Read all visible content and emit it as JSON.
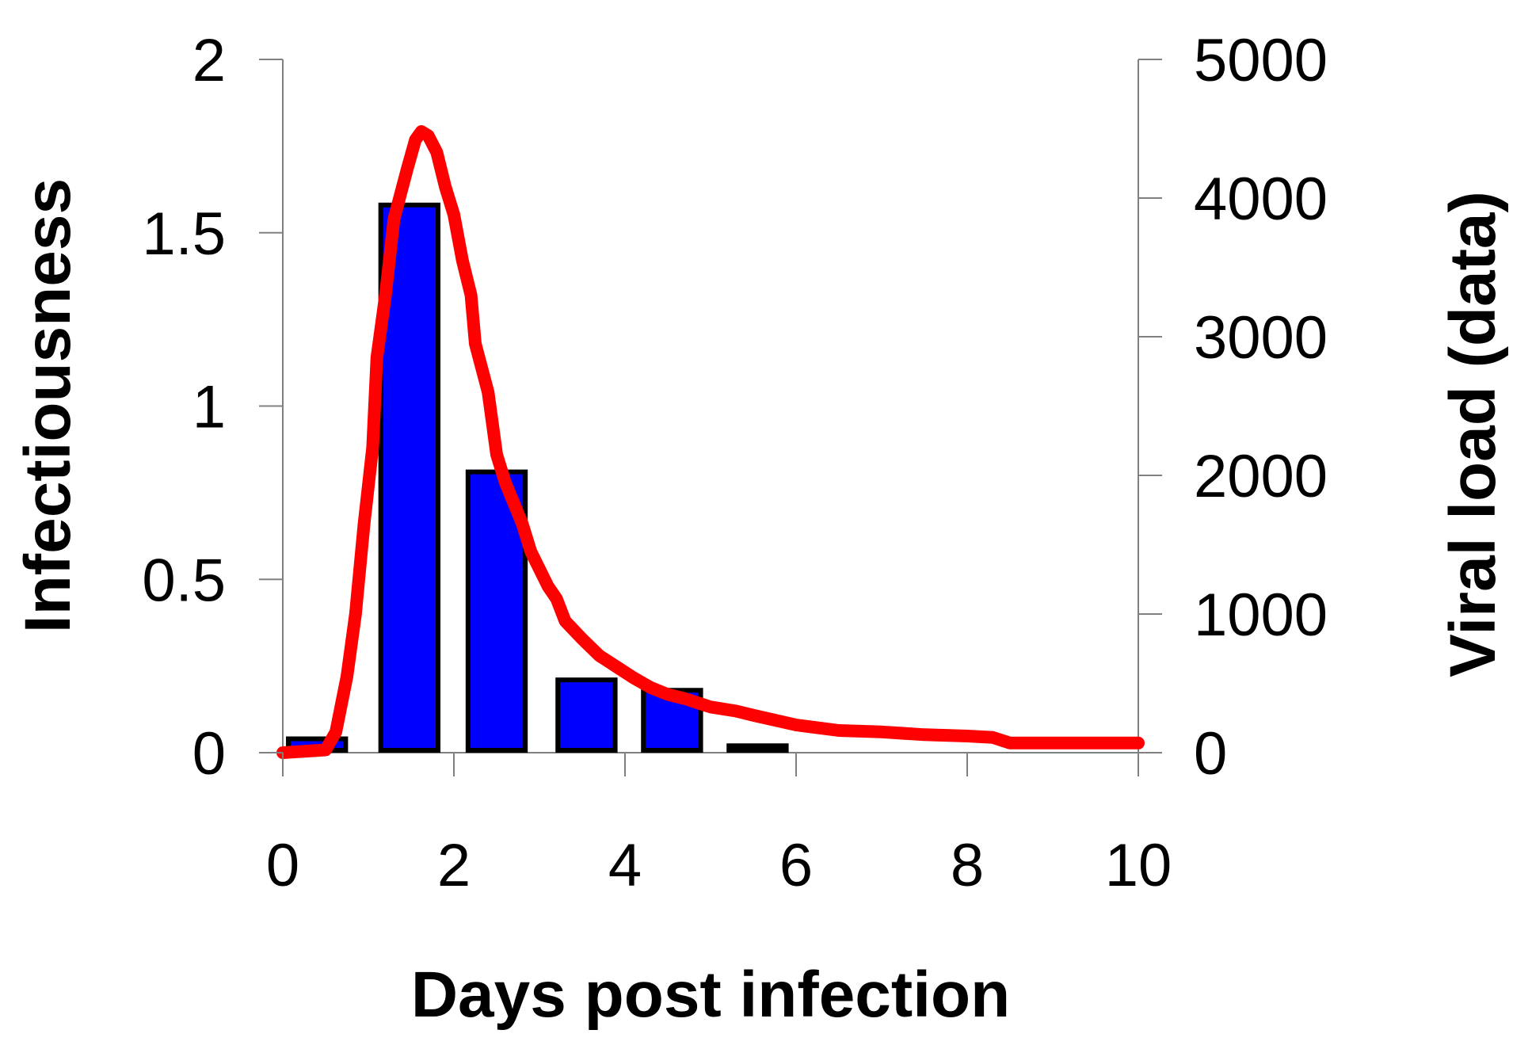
{
  "chart_data": {
    "type": "bar",
    "xlabel": "Days post infection",
    "ylabel_left": "Infectiousness",
    "ylabel_right": "Viral load (data)",
    "xlim": [
      0,
      10
    ],
    "ylim_left": [
      0,
      2
    ],
    "ylim_right": [
      0,
      5000
    ],
    "x_ticks": [
      "0",
      "2",
      "4",
      "6",
      "8",
      "10"
    ],
    "y_left_ticks": [
      "0",
      "0.5",
      "1",
      "1.5",
      "2"
    ],
    "y_right_ticks": [
      "0",
      "1000",
      "2000",
      "3000",
      "4000",
      "5000"
    ],
    "grid": false,
    "legend": "none",
    "series": [
      {
        "kind": "bar",
        "axis": "left",
        "color": "#0000ff",
        "bar_width_days": 0.67,
        "bars": [
          {
            "day": 0.4,
            "value": 0.04
          },
          {
            "day": 1.48,
            "value": 1.58
          },
          {
            "day": 2.5,
            "value": 0.81
          },
          {
            "day": 3.55,
            "value": 0.21
          },
          {
            "day": 4.55,
            "value": 0.18
          },
          {
            "day": 5.55,
            "value": 0.02
          }
        ]
      },
      {
        "kind": "line",
        "axis": "right",
        "color": "#ff0000",
        "points": [
          [
            0,
            0
          ],
          [
            0.5,
            20
          ],
          [
            0.62,
            150
          ],
          [
            0.75,
            550
          ],
          [
            0.85,
            1000
          ],
          [
            0.95,
            1650
          ],
          [
            1.05,
            2200
          ],
          [
            1.1,
            2850
          ],
          [
            1.2,
            3300
          ],
          [
            1.3,
            3850
          ],
          [
            1.45,
            4200
          ],
          [
            1.55,
            4420
          ],
          [
            1.62,
            4480
          ],
          [
            1.7,
            4450
          ],
          [
            1.8,
            4330
          ],
          [
            1.9,
            4080
          ],
          [
            2.0,
            3880
          ],
          [
            2.1,
            3550
          ],
          [
            2.2,
            3300
          ],
          [
            2.25,
            2950
          ],
          [
            2.4,
            2600
          ],
          [
            2.5,
            2150
          ],
          [
            2.6,
            1950
          ],
          [
            2.7,
            1800
          ],
          [
            2.8,
            1650
          ],
          [
            2.9,
            1450
          ],
          [
            3.1,
            1200
          ],
          [
            3.2,
            1110
          ],
          [
            3.3,
            950
          ],
          [
            3.5,
            820
          ],
          [
            3.7,
            700
          ],
          [
            3.9,
            620
          ],
          [
            4.1,
            540
          ],
          [
            4.3,
            470
          ],
          [
            4.5,
            420
          ],
          [
            4.7,
            390
          ],
          [
            5.0,
            330
          ],
          [
            5.3,
            300
          ],
          [
            5.5,
            270
          ],
          [
            6.0,
            200
          ],
          [
            6.5,
            160
          ],
          [
            7.0,
            150
          ],
          [
            7.5,
            130
          ],
          [
            8.0,
            120
          ],
          [
            8.3,
            110
          ],
          [
            8.5,
            70
          ],
          [
            9.0,
            70
          ],
          [
            10.0,
            70
          ]
        ]
      }
    ]
  }
}
